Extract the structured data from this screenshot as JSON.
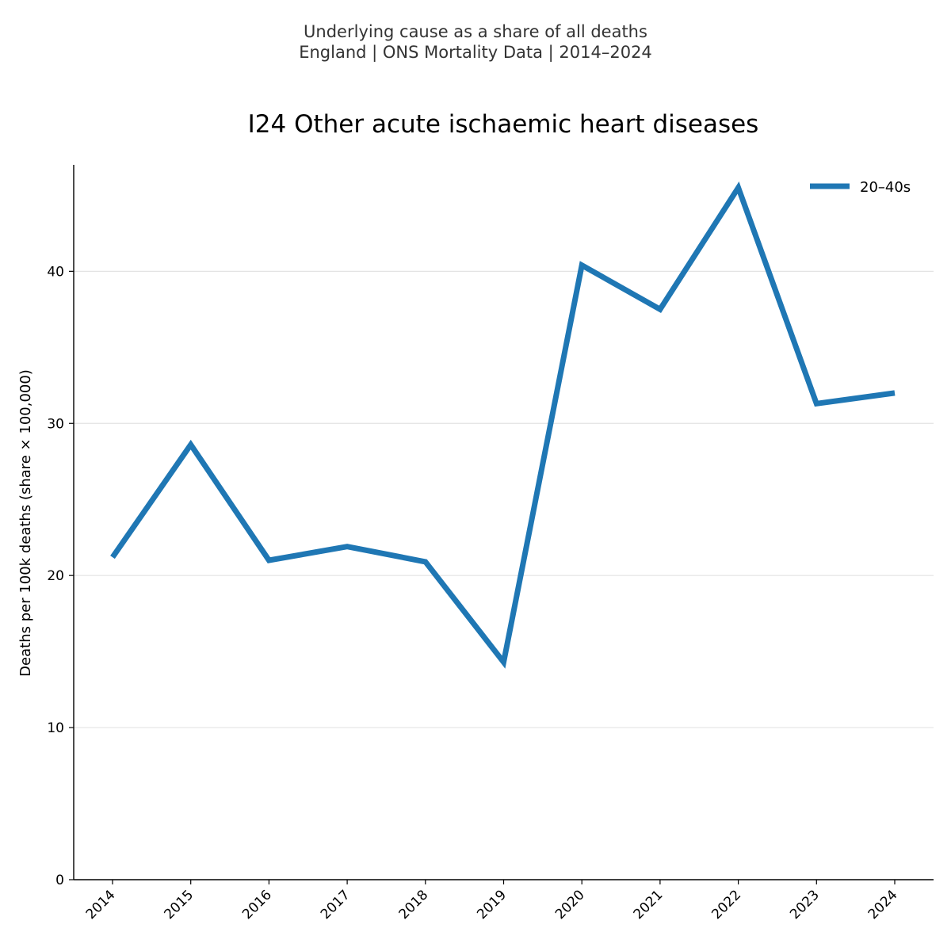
{
  "header": {
    "suptitle_line1": "Underlying cause as a share of all deaths",
    "suptitle_line2": "England | ONS Mortality Data | 2014–2024"
  },
  "chart_data": {
    "type": "line",
    "title": "I24 Other acute ischaemic heart diseases",
    "xlabel": "",
    "ylabel": "Deaths per 100k deaths (share × 100,000)",
    "categories": [
      "2014",
      "2015",
      "2016",
      "2017",
      "2018",
      "2019",
      "2020",
      "2021",
      "2022",
      "2023",
      "2024"
    ],
    "series": [
      {
        "name": "20–40s",
        "color": "#1f77b4",
        "values": [
          21.2,
          28.6,
          21.0,
          21.9,
          20.9,
          14.3,
          40.4,
          37.5,
          45.5,
          31.3,
          32.0
        ]
      }
    ],
    "ylim": [
      0,
      47
    ],
    "yticks": [
      0,
      10,
      20,
      30,
      40
    ],
    "grid": "horizontal",
    "legend_position": "top-right"
  }
}
